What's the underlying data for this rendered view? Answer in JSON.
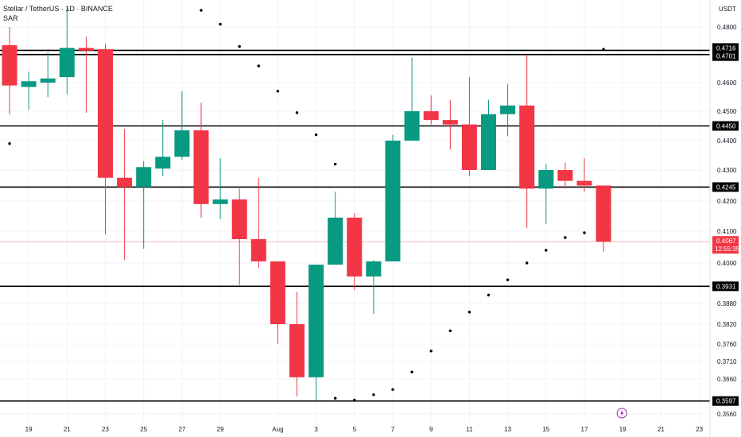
{
  "header": {
    "title": "Stellar / TetherUS · 1D · BINANCE",
    "indicator": "SAR"
  },
  "axis_unit": "USDT",
  "colors": {
    "up": "#089981",
    "down": "#f23645",
    "level": "#000000",
    "sar": "#000000",
    "grid": "#f0f3fa",
    "current": "#f23645"
  },
  "chart_data": {
    "type": "candlestick",
    "price_ticks": [
      "0.4800",
      "0.4600",
      "0.4500",
      "0.4400",
      "0.4300",
      "0.4200",
      "0.4100",
      "0.4000",
      "0.3880",
      "0.3820",
      "0.3760",
      "0.3710",
      "0.3660",
      "0.3560"
    ],
    "date_ticks": [
      {
        "label": "19",
        "index": 1
      },
      {
        "label": "21",
        "index": 3
      },
      {
        "label": "23",
        "index": 5
      },
      {
        "label": "25",
        "index": 7
      },
      {
        "label": "27",
        "index": 9
      },
      {
        "label": "29",
        "index": 11
      },
      {
        "label": "Aug",
        "index": 14
      },
      {
        "label": "3",
        "index": 16
      },
      {
        "label": "5",
        "index": 18
      },
      {
        "label": "7",
        "index": 20
      },
      {
        "label": "9",
        "index": 22
      },
      {
        "label": "11",
        "index": 24
      },
      {
        "label": "13",
        "index": 26
      },
      {
        "label": "15",
        "index": 28
      },
      {
        "label": "17",
        "index": 30
      },
      {
        "label": "19",
        "index": 32
      },
      {
        "label": "21",
        "index": 34
      },
      {
        "label": "23",
        "index": 36
      }
    ],
    "levels": [
      "0.4716",
      "0.4701",
      "0.4450",
      "0.4245",
      "0.3931",
      "0.3597"
    ],
    "current_price": "0.4067",
    "countdown": "12:55:35",
    "candles": [
      {
        "o": 0.4735,
        "h": 0.48,
        "l": 0.449,
        "c": 0.459
      },
      {
        "o": 0.4585,
        "h": 0.464,
        "l": 0.4505,
        "c": 0.4605
      },
      {
        "o": 0.46,
        "h": 0.471,
        "l": 0.455,
        "c": 0.4615
      },
      {
        "o": 0.462,
        "h": 0.487,
        "l": 0.456,
        "c": 0.4725
      },
      {
        "o": 0.4725,
        "h": 0.4765,
        "l": 0.4495,
        "c": 0.4715
      },
      {
        "o": 0.472,
        "h": 0.474,
        "l": 0.409,
        "c": 0.4275
      },
      {
        "o": 0.4275,
        "h": 0.444,
        "l": 0.401,
        "c": 0.4245
      },
      {
        "o": 0.4245,
        "h": 0.433,
        "l": 0.4045,
        "c": 0.431
      },
      {
        "o": 0.4305,
        "h": 0.447,
        "l": 0.428,
        "c": 0.4345
      },
      {
        "o": 0.4345,
        "h": 0.457,
        "l": 0.4335,
        "c": 0.4435
      },
      {
        "o": 0.4435,
        "h": 0.453,
        "l": 0.4145,
        "c": 0.419
      },
      {
        "o": 0.419,
        "h": 0.434,
        "l": 0.414,
        "c": 0.4205
      },
      {
        "o": 0.4205,
        "h": 0.424,
        "l": 0.3935,
        "c": 0.4075
      },
      {
        "o": 0.4075,
        "h": 0.4275,
        "l": 0.3985,
        "c": 0.4005
      },
      {
        "o": 0.4005,
        "h": 0.4005,
        "l": 0.376,
        "c": 0.382
      },
      {
        "o": 0.382,
        "h": 0.3915,
        "l": 0.361,
        "c": 0.3665
      },
      {
        "o": 0.3665,
        "h": 0.399,
        "l": 0.36,
        "c": 0.3995
      },
      {
        "o": 0.3995,
        "h": 0.423,
        "l": 0.3995,
        "c": 0.4145
      },
      {
        "o": 0.4145,
        "h": 0.416,
        "l": 0.392,
        "c": 0.396
      },
      {
        "o": 0.396,
        "h": 0.401,
        "l": 0.385,
        "c": 0.4005
      },
      {
        "o": 0.4005,
        "h": 0.442,
        "l": 0.4005,
        "c": 0.44
      },
      {
        "o": 0.44,
        "h": 0.469,
        "l": 0.44,
        "c": 0.45
      },
      {
        "o": 0.45,
        "h": 0.4555,
        "l": 0.4455,
        "c": 0.447
      },
      {
        "o": 0.447,
        "h": 0.454,
        "l": 0.437,
        "c": 0.4455
      },
      {
        "o": 0.4455,
        "h": 0.462,
        "l": 0.428,
        "c": 0.43
      },
      {
        "o": 0.43,
        "h": 0.454,
        "l": 0.43,
        "c": 0.449
      },
      {
        "o": 0.449,
        "h": 0.4595,
        "l": 0.4415,
        "c": 0.452
      },
      {
        "o": 0.452,
        "h": 0.47,
        "l": 0.411,
        "c": 0.424
      },
      {
        "o": 0.424,
        "h": 0.432,
        "l": 0.4125,
        "c": 0.43
      },
      {
        "o": 0.43,
        "h": 0.4325,
        "l": 0.424,
        "c": 0.4265
      },
      {
        "o": 0.4265,
        "h": 0.434,
        "l": 0.423,
        "c": 0.425
      },
      {
        "o": 0.425,
        "h": 0.425,
        "l": 0.4035,
        "c": 0.4067
      }
    ],
    "sar": [
      0.439,
      null,
      null,
      null,
      null,
      null,
      null,
      null,
      null,
      0.4905,
      0.486,
      0.481,
      0.473,
      0.466,
      0.457,
      0.4495,
      0.442,
      0.432,
      null,
      null,
      null,
      null,
      null,
      null,
      null,
      null,
      null,
      null,
      null,
      null,
      null,
      0.472
    ],
    "sar_right": [
      {
        "index": 17,
        "v": 0.3605
      },
      {
        "index": 18,
        "v": 0.36
      },
      {
        "index": 19,
        "v": 0.3615
      },
      {
        "index": 20,
        "v": 0.363
      },
      {
        "index": 21,
        "v": 0.368
      },
      {
        "index": 22,
        "v": 0.374
      },
      {
        "index": 23,
        "v": 0.38
      },
      {
        "index": 24,
        "v": 0.3855
      },
      {
        "index": 25,
        "v": 0.3905
      },
      {
        "index": 26,
        "v": 0.395
      },
      {
        "index": 27,
        "v": 0.4
      },
      {
        "index": 28,
        "v": 0.404
      },
      {
        "index": 29,
        "v": 0.408
      },
      {
        "index": 30,
        "v": 0.4095
      }
    ]
  }
}
